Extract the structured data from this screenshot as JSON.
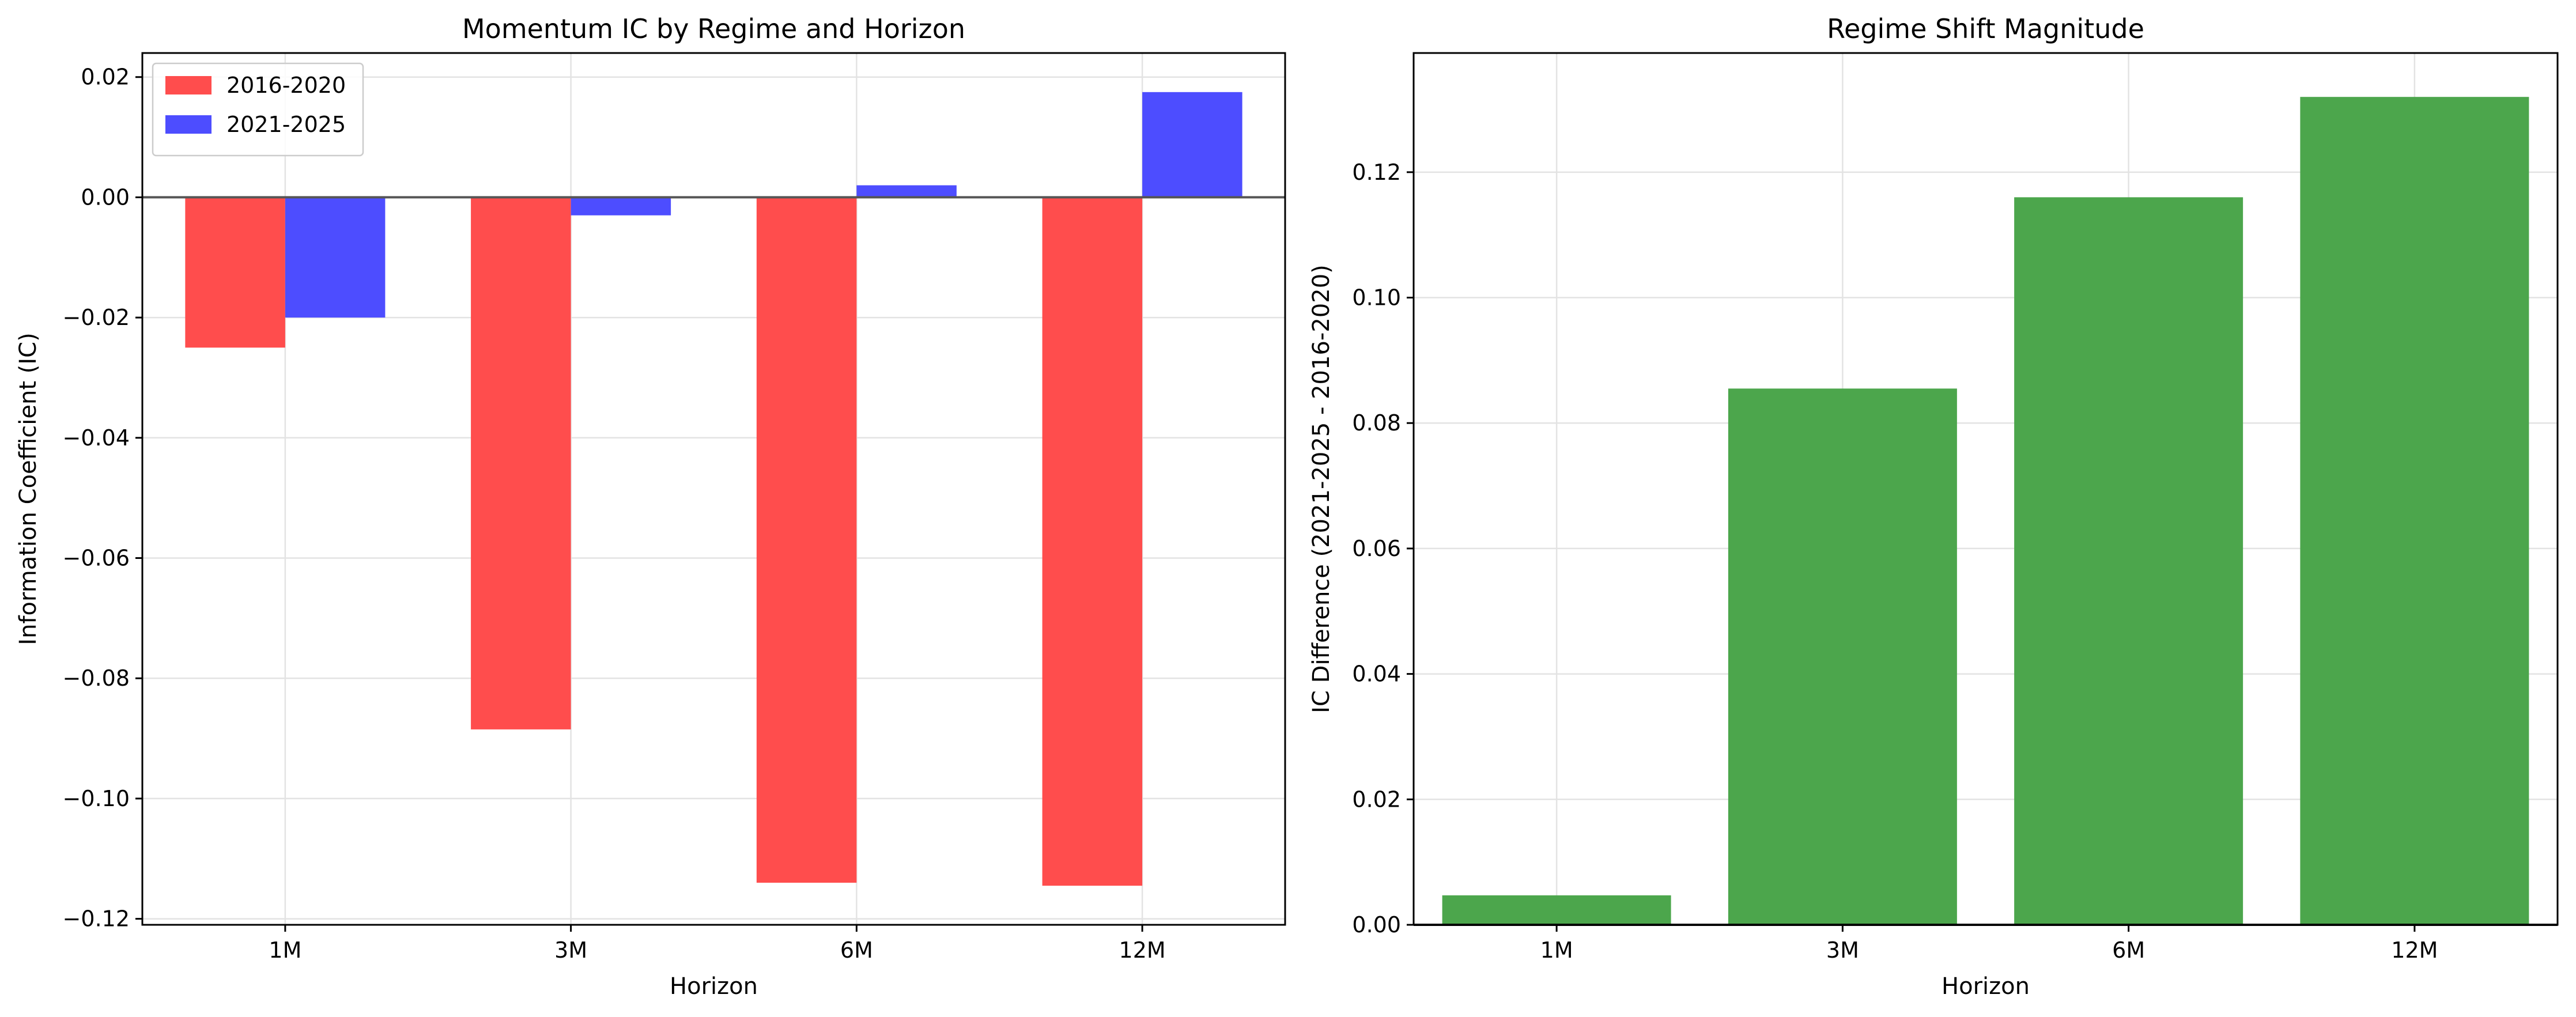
{
  "chart_data": [
    {
      "type": "bar",
      "title": "Momentum IC by Regime and Horizon",
      "xlabel": "Horizon",
      "ylabel": "Information Coefficient (IC)",
      "categories": [
        "1M",
        "3M",
        "6M",
        "12M"
      ],
      "series": [
        {
          "name": "2016-2020",
          "color": "#ff4d4d",
          "values": [
            -0.025,
            -0.0885,
            -0.114,
            -0.1145
          ]
        },
        {
          "name": "2021-2025",
          "color": "#4d4dff",
          "values": [
            -0.02,
            -0.003,
            0.002,
            0.0175
          ]
        }
      ],
      "ylim": [
        -0.121,
        0.024
      ],
      "yticks": [
        -0.12,
        -0.1,
        -0.08,
        -0.06,
        -0.04,
        -0.02,
        0.0,
        0.02
      ],
      "ytick_labels": [
        "−0.12",
        "−0.10",
        "−0.08",
        "−0.06",
        "−0.04",
        "−0.02",
        "0.00",
        "0.02"
      ],
      "grid": true,
      "zero_line": true,
      "legend_position": "top-left"
    },
    {
      "type": "bar",
      "title": "Regime Shift Magnitude",
      "xlabel": "Horizon",
      "ylabel": "IC Difference (2021-2025 - 2016-2020)",
      "categories": [
        "1M",
        "3M",
        "6M",
        "12M"
      ],
      "series": [
        {
          "color": "#4ca64c",
          "values": [
            0.0047,
            0.0855,
            0.116,
            0.132
          ]
        }
      ],
      "ylim": [
        0.0,
        0.139
      ],
      "yticks": [
        0.0,
        0.02,
        0.04,
        0.06,
        0.08,
        0.1,
        0.12
      ],
      "ytick_labels": [
        "0.00",
        "0.02",
        "0.04",
        "0.06",
        "0.08",
        "0.10",
        "0.12"
      ],
      "grid": true,
      "zero_line": true
    }
  ]
}
